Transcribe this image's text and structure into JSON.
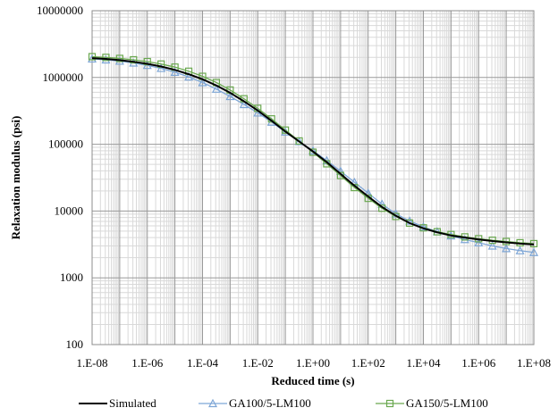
{
  "chart_data": {
    "type": "line",
    "title": "",
    "xlabel": "Reduced time (s)",
    "ylabel": "Relaxation modulus  (psi)",
    "x_scale": "log",
    "y_scale": "log",
    "xlim": [
      1e-08,
      100000000.0
    ],
    "ylim": [
      100,
      10000000
    ],
    "grid": true,
    "legend_position": "bottom",
    "x_tick_labels": [
      "1.E-08",
      "1.E-06",
      "1.E-04",
      "1.E-02",
      "1.E+00",
      "1.E+02",
      "1.E+04",
      "1.E+06",
      "1.E+08"
    ],
    "y_tick_labels": [
      "100",
      "1000",
      "10000",
      "100000",
      "1000000",
      "10000000"
    ],
    "x": [
      1e-08,
      3.16e-08,
      1e-07,
      3.16e-07,
      1e-06,
      3.16e-06,
      1e-05,
      3.16e-05,
      0.0001,
      0.000316,
      0.001,
      0.00316,
      0.01,
      0.0316,
      0.1,
      0.316,
      1,
      3.16,
      10,
      31.6,
      100,
      316,
      1000,
      3160,
      10000,
      31600,
      100000,
      316000,
      1000000,
      3160000,
      10000000,
      31600000,
      100000000
    ],
    "series": [
      {
        "name": "Simulated",
        "color": "#000000",
        "marker": "none",
        "values": [
          1950000,
          1900000,
          1820000,
          1720000,
          1600000,
          1460000,
          1300000,
          1120000,
          940000,
          760000,
          590000,
          440000,
          320000,
          225000,
          155000,
          110000,
          78000,
          54000,
          36000,
          24000,
          16500,
          11500,
          8500,
          6600,
          5500,
          4800,
          4300,
          4000,
          3750,
          3550,
          3400,
          3250,
          3150
        ]
      },
      {
        "name": "GA100/5-LM100",
        "color": "#7ea6d6",
        "marker": "triangle",
        "values": [
          1900000,
          1840000,
          1760000,
          1650000,
          1520000,
          1370000,
          1200000,
          1020000,
          840000,
          670000,
          520000,
          395000,
          295000,
          215000,
          153000,
          110000,
          80000,
          57000,
          39500,
          27000,
          18500,
          12700,
          9100,
          7100,
          5800,
          4900,
          4250,
          3750,
          3350,
          3000,
          2750,
          2550,
          2400
        ]
      },
      {
        "name": "GA150/5-LM100",
        "color": "#6aa84f",
        "marker": "square",
        "values": [
          2050000,
          2000000,
          1930000,
          1840000,
          1730000,
          1590000,
          1430000,
          1240000,
          1040000,
          840000,
          650000,
          480000,
          345000,
          240000,
          163000,
          112000,
          76000,
          51000,
          34000,
          22500,
          15500,
          11000,
          8300,
          6600,
          5600,
          4900,
          4450,
          4100,
          3850,
          3650,
          3500,
          3350,
          3250
        ]
      }
    ]
  }
}
